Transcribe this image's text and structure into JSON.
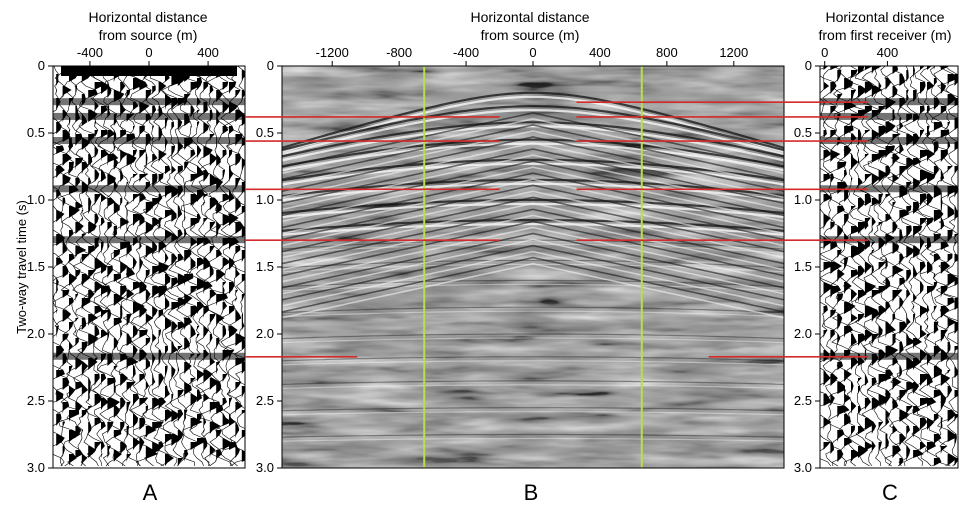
{
  "chart_data": [
    {
      "type": "seismic-wiggle",
      "panel_label": "A",
      "xlabel_line1": "Horizontal distance",
      "xlabel_line2": "from source (m)",
      "xticks": [
        "-400",
        "0",
        "400"
      ],
      "xtick_values": [
        -400,
        0,
        400
      ],
      "xlim": [
        -650,
        650
      ],
      "ylabel": "Two-way travel time (s)",
      "yticks": [
        "0",
        "0.5",
        "1.0",
        "1.5",
        "2.0",
        "2.5",
        "3.0"
      ],
      "ytick_values": [
        0,
        0.5,
        1.0,
        1.5,
        2.0,
        2.5,
        3.0
      ],
      "ylim": [
        0,
        3.0
      ]
    },
    {
      "type": "seismic-image",
      "panel_label": "B",
      "xlabel_line1": "Horizontal distance",
      "xlabel_line2": "from source (m)",
      "xticks": [
        "-1200",
        "-800",
        "-400",
        "0",
        "400",
        "800",
        "1200"
      ],
      "xtick_values": [
        -1200,
        -800,
        -400,
        0,
        400,
        800,
        1200
      ],
      "xlim": [
        -1500,
        1500
      ],
      "yticks": [
        "0",
        "0.5",
        "1.0",
        "1.5",
        "2.0",
        "2.5",
        "3.0"
      ],
      "ytick_values": [
        0,
        0.5,
        1.0,
        1.5,
        2.0,
        2.5,
        3.0
      ],
      "ylim": [
        0,
        3.0
      ],
      "vertical_markers": [
        -650,
        650
      ],
      "marker_color": "#b8e04a"
    },
    {
      "type": "seismic-wiggle",
      "panel_label": "C",
      "xlabel_line1": "Horizontal distance",
      "xlabel_line2": "from first receiver (m)",
      "xticks": [
        "0",
        "400"
      ],
      "xtick_values": [
        0,
        400
      ],
      "xlim": [
        -30,
        850
      ],
      "yticks": [
        "0",
        "0.5",
        "1.0",
        "1.5",
        "2.0",
        "2.5",
        "3.0"
      ],
      "ytick_values": [
        0,
        0.5,
        1.0,
        1.5,
        2.0,
        2.5,
        3.0
      ],
      "ylim": [
        0,
        3.0
      ]
    }
  ],
  "reflector_times_s": [
    0.27,
    0.38,
    0.56,
    0.92,
    1.3,
    2.17
  ],
  "reflector_color": "#d42a2a"
}
